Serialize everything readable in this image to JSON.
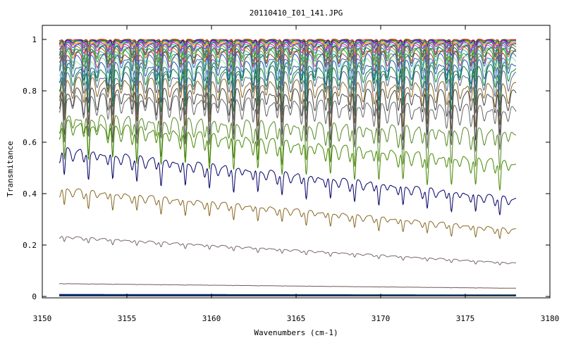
{
  "chart_data": {
    "type": "line",
    "title": "20110410_I01_141.JPG",
    "xlabel": "Wavenumbers (cm-1)",
    "ylabel": "Transmitance",
    "xlim": [
      3150,
      3180
    ],
    "ylim": [
      0,
      1
    ],
    "x_range_of_data": [
      3151,
      3178
    ],
    "x_ticks": [
      3150,
      3155,
      3160,
      3165,
      3170,
      3175,
      3180
    ],
    "y_ticks": [
      0,
      0.2,
      0.4,
      0.6,
      0.8,
      1
    ],
    "y_tick_labels": [
      "0",
      "0.2",
      "0.4",
      "0.6",
      "0.8",
      "1"
    ],
    "grid": false,
    "legend": "none",
    "line_spacing_cm1": 1.43,
    "first_line_cm1": 3151.3,
    "series": [
      {
        "color": "#dd0000",
        "start": 1.0,
        "end": 1.0,
        "depth": 0.01
      },
      {
        "color": "#00aa00",
        "start": 0.998,
        "end": 0.998,
        "depth": 0.015
      },
      {
        "color": "#0000cc",
        "start": 0.996,
        "end": 0.996,
        "depth": 0.02
      },
      {
        "color": "#cc00cc",
        "start": 0.994,
        "end": 0.995,
        "depth": 0.025
      },
      {
        "color": "#00aaaa",
        "start": 0.992,
        "end": 0.993,
        "depth": 0.03
      },
      {
        "color": "#aaaa00",
        "start": 0.99,
        "end": 0.991,
        "depth": 0.035
      },
      {
        "color": "#ff8800",
        "start": 0.988,
        "end": 0.989,
        "depth": 0.04
      },
      {
        "color": "#8800ff",
        "start": 0.985,
        "end": 0.987,
        "depth": 0.05
      },
      {
        "color": "#00cc66",
        "start": 0.982,
        "end": 0.984,
        "depth": 0.06
      },
      {
        "color": "#ff0088",
        "start": 0.978,
        "end": 0.98,
        "depth": 0.07
      },
      {
        "color": "#3388ff",
        "start": 0.974,
        "end": 0.977,
        "depth": 0.08
      },
      {
        "color": "#888800",
        "start": 0.97,
        "end": 0.973,
        "depth": 0.09
      },
      {
        "color": "#006688",
        "start": 0.965,
        "end": 0.968,
        "depth": 0.1
      },
      {
        "color": "#cc6600",
        "start": 0.96,
        "end": 0.963,
        "depth": 0.11
      },
      {
        "color": "#44bbbb",
        "start": 0.955,
        "end": 0.958,
        "depth": 0.12
      },
      {
        "color": "#22aa22",
        "start": 0.95,
        "end": 0.952,
        "depth": 0.13
      },
      {
        "color": "#aa3355",
        "start": 0.94,
        "end": 0.944,
        "depth": 0.14
      },
      {
        "color": "#3366cc",
        "start": 0.93,
        "end": 0.935,
        "depth": 0.15
      },
      {
        "color": "#99dd99",
        "start": 0.915,
        "end": 0.925,
        "depth": 0.16
      },
      {
        "color": "#2255aa",
        "start": 0.9,
        "end": 0.91,
        "depth": 0.17
      },
      {
        "color": "#008833",
        "start": 0.88,
        "end": 0.89,
        "depth": 0.18
      },
      {
        "color": "#556688",
        "start": 0.86,
        "end": 0.865,
        "depth": 0.19
      },
      {
        "color": "#886622",
        "start": 0.84,
        "end": 0.82,
        "depth": 0.2
      },
      {
        "color": "#444444",
        "start": 0.8,
        "end": 0.79,
        "depth": 0.22
      },
      {
        "color": "#666666",
        "start": 0.78,
        "end": 0.73,
        "depth": 0.22
      },
      {
        "color": "#558822",
        "start": 0.7,
        "end": 0.64,
        "depth": 0.22
      },
      {
        "color": "#448800",
        "start": 0.68,
        "end": 0.52,
        "depth": 0.2
      },
      {
        "color": "#000066",
        "start": 0.575,
        "end": 0.38,
        "depth": 0.18
      },
      {
        "color": "#886622",
        "start": 0.42,
        "end": 0.26,
        "depth": 0.16
      },
      {
        "color": "#776666",
        "start": 0.235,
        "end": 0.13,
        "depth": 0.09
      },
      {
        "color": "#775555",
        "start": 0.05,
        "end": 0.032,
        "depth": 0.025
      },
      {
        "color": "#000088",
        "start": 0.008,
        "end": 0.006,
        "depth": 0.006
      },
      {
        "color": "#0000ff",
        "start": 0.006,
        "end": 0.005,
        "depth": 0.004
      },
      {
        "color": "#006600",
        "start": 0.004,
        "end": 0.004,
        "depth": 0.003
      },
      {
        "color": "#000000",
        "start": 0.002,
        "end": 0.002,
        "depth": 0.002
      }
    ]
  }
}
